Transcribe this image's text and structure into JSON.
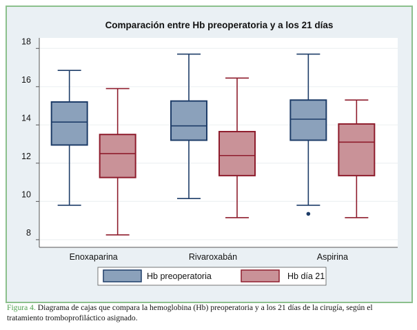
{
  "chart_data": {
    "type": "box",
    "title": "Comparación entre Hb preoperatoria y a los 21 días",
    "xlabel": "",
    "ylabel": "",
    "ylim": [
      7.6,
      18.55
    ],
    "yticks": [
      8,
      10,
      12,
      14,
      16,
      18
    ],
    "grid": true,
    "legend_position": "bottom",
    "categories": [
      "Enoxaparina",
      "Rivaroxabán",
      "Aspirina"
    ],
    "series": [
      {
        "name": "Hb preoperatoria",
        "color": "#8ba1bb",
        "edge": "#1d3c68",
        "boxes": [
          {
            "whisker_low": 9.8,
            "q1": 12.95,
            "median": 14.15,
            "q3": 15.2,
            "whisker_high": 16.85,
            "outliers": []
          },
          {
            "whisker_low": 10.15,
            "q1": 13.2,
            "median": 13.95,
            "q3": 15.25,
            "whisker_high": 17.7,
            "outliers": []
          },
          {
            "whisker_low": 9.8,
            "q1": 13.2,
            "median": 14.3,
            "q3": 15.3,
            "whisker_high": 17.7,
            "outliers": [
              9.35
            ]
          }
        ]
      },
      {
        "name": "Hb día 21",
        "color": "#c99298",
        "edge": "#8e1c2c",
        "boxes": [
          {
            "whisker_low": 8.25,
            "q1": 11.25,
            "median": 12.5,
            "q3": 13.5,
            "whisker_high": 15.9,
            "outliers": []
          },
          {
            "whisker_low": 9.15,
            "q1": 11.35,
            "median": 12.4,
            "q3": 13.65,
            "whisker_high": 16.45,
            "outliers": []
          },
          {
            "whisker_low": 9.15,
            "q1": 11.35,
            "median": 13.1,
            "q3": 14.05,
            "whisker_high": 15.3,
            "outliers": []
          }
        ]
      }
    ]
  },
  "caption": {
    "label": "Figura 4.",
    "text": " Diagrama de cajas que compara la hemoglobina (Hb) preoperatoria y a los 21 días de la cirugía, según el tratamiento tromboprofiláctico asignado."
  }
}
